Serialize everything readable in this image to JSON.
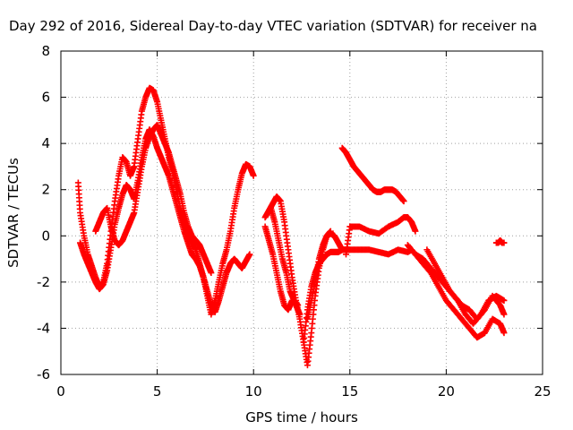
{
  "chart_data": {
    "type": "scatter",
    "title": "Day 292 of 2016, Sidereal Day-to-day VTEC variation (SDTVAR) for receiver na",
    "xlabel": "GPS time / hours",
    "ylabel": "SDTVAR / TECUs",
    "xlim": [
      0,
      25
    ],
    "ylim": [
      -6,
      8
    ],
    "xticks": [
      0,
      5,
      10,
      15,
      20,
      25
    ],
    "yticks": [
      -6,
      -4,
      -2,
      0,
      2,
      4,
      6,
      8
    ],
    "xtick_labels": [
      "0",
      "5",
      "10",
      "15",
      "20",
      "25"
    ],
    "ytick_labels": [
      "-6",
      "-4",
      "-2",
      "0",
      "2",
      "4",
      "6",
      "8"
    ],
    "grid": true,
    "legend": "none",
    "marker": "plus",
    "color": "#ff0000",
    "series": [
      {
        "x": [
          0.9,
          1.0,
          1.2,
          1.4,
          1.6,
          1.8,
          2.0,
          2.2,
          2.4,
          2.6,
          2.8,
          3.0,
          3.2,
          3.4,
          3.6,
          3.8,
          4.0,
          4.2,
          4.4,
          4.6,
          4.8,
          5.0,
          5.2,
          5.4,
          5.6,
          5.8,
          6.0,
          6.2,
          6.4,
          6.6,
          6.8,
          7.0,
          7.2,
          7.4,
          7.6,
          7.8,
          8.0,
          8.2,
          8.4,
          8.6,
          8.8,
          9.0,
          9.2,
          9.4,
          9.6,
          9.8,
          10.0
        ],
        "y": [
          2.3,
          1.0,
          0.0,
          -0.8,
          -1.3,
          -1.8,
          -2.2,
          -2.0,
          -1.2,
          0.2,
          1.5,
          2.6,
          3.4,
          3.2,
          2.6,
          3.0,
          4.2,
          5.4,
          6.0,
          6.4,
          6.3,
          5.8,
          5.0,
          4.2,
          3.4,
          2.8,
          2.0,
          1.2,
          0.6,
          0.2,
          -0.2,
          -0.6,
          -1.2,
          -1.8,
          -2.6,
          -3.4,
          -2.8,
          -2.0,
          -1.2,
          -0.6,
          0.2,
          1.2,
          2.0,
          2.7,
          3.1,
          3.0,
          2.6
        ]
      },
      {
        "x": [
          1.0,
          1.2,
          1.4,
          1.6,
          1.8,
          2.0,
          2.2,
          2.4,
          2.6,
          2.8,
          3.0,
          3.2,
          3.4,
          3.6,
          3.8,
          4.0,
          4.2,
          4.4,
          4.6,
          4.8,
          5.0,
          5.2,
          5.4,
          5.6,
          5.8,
          6.0,
          6.2,
          6.4,
          6.6,
          6.8,
          7.0,
          7.2,
          7.4,
          7.6,
          7.8,
          8.0,
          8.2,
          8.4,
          8.6,
          8.8,
          9.0,
          9.2,
          9.4,
          9.6,
          9.8
        ],
        "y": [
          -0.3,
          -0.8,
          -1.2,
          -1.6,
          -2.0,
          -2.3,
          -2.1,
          -1.5,
          -0.5,
          0.5,
          1.2,
          1.8,
          2.2,
          2.0,
          1.6,
          2.4,
          3.4,
          4.2,
          4.6,
          4.3,
          3.8,
          3.4,
          3.0,
          2.6,
          2.0,
          1.4,
          0.8,
          0.2,
          -0.3,
          -0.8,
          -1.0,
          -1.3,
          -1.8,
          -2.4,
          -3.0,
          -3.3,
          -2.8,
          -2.2,
          -1.6,
          -1.2,
          -1.0,
          -1.2,
          -1.4,
          -1.1,
          -0.8
        ]
      },
      {
        "x": [
          1.8,
          2.0,
          2.2,
          2.4,
          2.6,
          2.8,
          3.0,
          3.2,
          3.4,
          3.6,
          3.8,
          4.0,
          4.2,
          4.4,
          4.6,
          4.8,
          5.0,
          5.2,
          5.4,
          5.6,
          5.8,
          6.0,
          6.2,
          6.4,
          6.6,
          6.8,
          7.0,
          7.2,
          7.4,
          7.6,
          7.8
        ],
        "y": [
          0.2,
          0.6,
          1.0,
          1.2,
          0.4,
          -0.2,
          -0.4,
          -0.2,
          0.2,
          0.6,
          1.0,
          2.0,
          3.0,
          3.8,
          4.3,
          4.6,
          4.8,
          4.4,
          4.0,
          3.6,
          3.0,
          2.4,
          1.8,
          1.0,
          0.4,
          0.0,
          -0.2,
          -0.4,
          -0.8,
          -1.2,
          -1.6
        ]
      },
      {
        "x": [
          10.6,
          10.8,
          11.0,
          11.2,
          11.4,
          11.6,
          11.8,
          12.0,
          12.2,
          12.4,
          12.6,
          12.8,
          13.0,
          13.2,
          13.4,
          13.6,
          13.8,
          14.0
        ],
        "y": [
          0.8,
          1.1,
          1.4,
          1.7,
          1.5,
          0.6,
          -0.6,
          -1.8,
          -2.8,
          -3.6,
          -4.6,
          -5.6,
          -4.2,
          -2.6,
          -1.4,
          -0.6,
          0.0,
          0.2
        ]
      },
      {
        "x": [
          10.6,
          10.8,
          11.0,
          11.2,
          11.4,
          11.6,
          11.8,
          12.0,
          12.2,
          12.4
        ],
        "y": [
          0.4,
          -0.2,
          -0.8,
          -1.6,
          -2.4,
          -3.0,
          -3.2,
          -2.8,
          -3.0,
          -3.4
        ]
      },
      {
        "x": [
          10.9,
          11.1,
          11.3,
          11.5,
          11.7,
          11.9,
          12.1,
          12.3
        ],
        "y": [
          1.2,
          0.6,
          -0.2,
          -1.0,
          -1.6,
          -2.4,
          -2.8,
          -3.0
        ]
      },
      {
        "x": [
          12.6,
          12.8,
          13.0,
          13.2,
          13.4,
          13.6,
          13.8,
          14.0,
          14.2,
          14.4,
          14.6,
          14.8,
          15.0,
          15.5,
          16.0,
          16.5,
          17.0,
          17.5,
          18.0,
          18.2
        ],
        "y": [
          -4.6,
          -3.2,
          -2.2,
          -1.6,
          -1.2,
          -1.0,
          -0.8,
          -0.7,
          -0.7,
          -0.7,
          -0.6,
          -0.6,
          -0.6,
          -0.6,
          -0.6,
          -0.7,
          -0.8,
          -0.6,
          -0.7,
          -0.6
        ]
      },
      {
        "x": [
          14.8,
          15.0,
          15.5,
          16.0,
          16.5,
          17.0,
          17.5,
          17.8,
          18.0,
          18.2,
          18.4
        ],
        "y": [
          -0.8,
          0.4,
          0.4,
          0.2,
          0.1,
          0.4,
          0.6,
          0.8,
          0.8,
          0.6,
          0.2
        ]
      },
      {
        "x": [
          12.8,
          13.0,
          13.2,
          13.4,
          13.6,
          13.8,
          14.0,
          14.2,
          14.4,
          14.6
        ],
        "y": [
          -3.6,
          -2.8,
          -2.0,
          -1.0,
          -0.4,
          0.0,
          0.1,
          0.0,
          -0.3,
          -0.6
        ]
      },
      {
        "x": [
          14.6,
          14.8,
          15.0,
          15.2,
          15.4,
          15.6,
          15.8,
          16.0,
          16.2,
          16.4,
          16.6,
          16.8,
          17.0,
          17.2,
          17.4,
          17.6,
          17.8
        ],
        "y": [
          3.8,
          3.6,
          3.3,
          3.0,
          2.8,
          2.6,
          2.4,
          2.2,
          2.0,
          1.9,
          1.9,
          2.0,
          2.0,
          2.0,
          1.9,
          1.7,
          1.5
        ]
      },
      {
        "x": [
          18.0,
          18.4,
          18.8,
          19.2,
          19.6,
          20.0,
          20.4,
          20.8,
          21.2,
          21.6,
          22.0,
          22.4,
          22.8,
          23.0
        ],
        "y": [
          -0.4,
          -0.8,
          -1.2,
          -1.6,
          -2.2,
          -2.8,
          -3.2,
          -3.6,
          -4.0,
          -4.4,
          -4.2,
          -3.6,
          -3.8,
          -4.2
        ]
      },
      {
        "x": [
          18.4,
          18.8,
          19.2,
          19.6,
          20.0,
          20.4,
          20.8,
          21.2,
          21.6,
          22.0,
          22.4,
          22.8,
          23.0
        ],
        "y": [
          -0.8,
          -1.0,
          -1.4,
          -1.8,
          -2.2,
          -2.6,
          -3.0,
          -3.2,
          -3.6,
          -3.2,
          -2.6,
          -3.0,
          -3.4
        ]
      },
      {
        "x": [
          19.0,
          19.4,
          19.8,
          20.2,
          20.6,
          21.0,
          21.4,
          21.8,
          22.2,
          22.6,
          23.0
        ],
        "y": [
          -0.6,
          -1.2,
          -1.8,
          -2.4,
          -2.8,
          -3.4,
          -3.8,
          -3.4,
          -2.8,
          -2.6,
          -2.8
        ]
      },
      {
        "x": [
          22.6,
          22.7,
          22.8,
          22.9,
          23.0
        ],
        "y": [
          -0.3,
          -0.3,
          -0.2,
          -0.3,
          -0.3
        ]
      }
    ]
  }
}
